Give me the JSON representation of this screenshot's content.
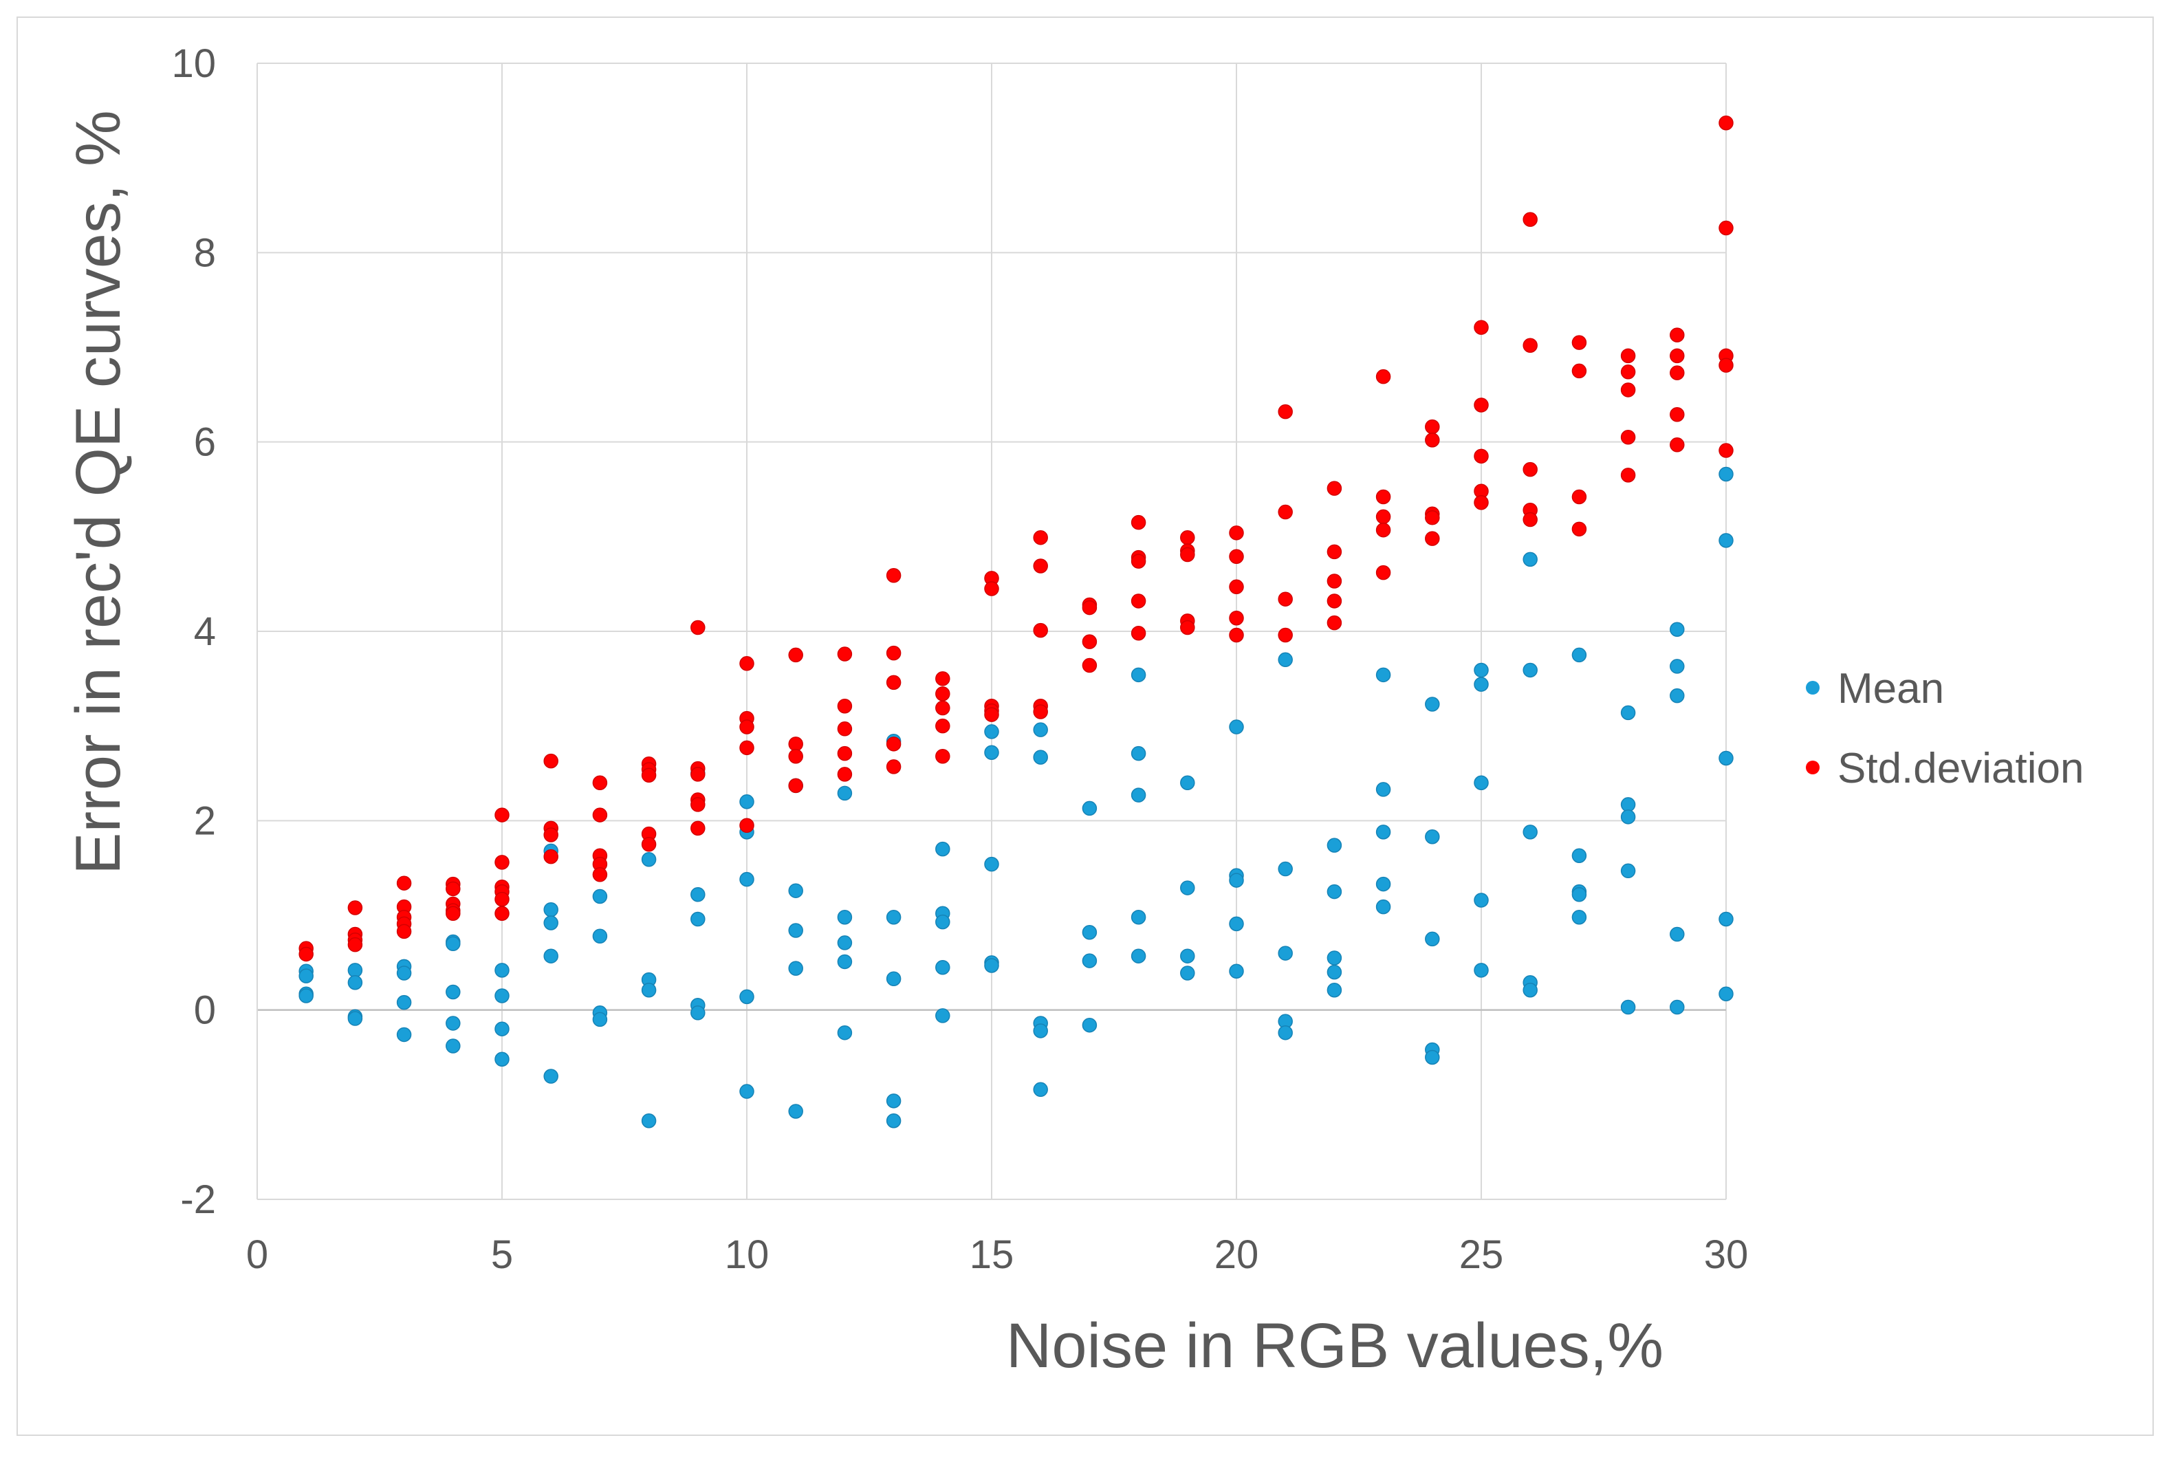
{
  "chart_data": {
    "type": "scatter",
    "title": "",
    "xlabel": "Noise in RGB values,%",
    "ylabel": "Error in rec'd QE curves, %",
    "xlim": [
      0,
      30
    ],
    "ylim": [
      -2,
      10
    ],
    "x_ticks": [
      0,
      5,
      10,
      15,
      20,
      25,
      30
    ],
    "y_ticks": [
      -2,
      0,
      2,
      4,
      6,
      8,
      10
    ],
    "grid": true,
    "legend_position": "right",
    "series": [
      {
        "name": "Mean",
        "color": "#1a9fd8",
        "points": [
          [
            1,
            0.41
          ],
          [
            1,
            0.36
          ],
          [
            1,
            0.17
          ],
          [
            1,
            0.15
          ],
          [
            2,
            0.42
          ],
          [
            2,
            0.29
          ],
          [
            2,
            -0.07
          ],
          [
            2,
            -0.09
          ],
          [
            3,
            0.46
          ],
          [
            3,
            0.39
          ],
          [
            3,
            0.08
          ],
          [
            3,
            -0.26
          ],
          [
            4,
            0.72
          ],
          [
            4,
            0.7
          ],
          [
            4,
            0.19
          ],
          [
            4,
            -0.14
          ],
          [
            4,
            -0.38
          ],
          [
            5,
            0.42
          ],
          [
            5,
            0.15
          ],
          [
            5,
            -0.2
          ],
          [
            5,
            -0.52
          ],
          [
            6,
            1.68
          ],
          [
            6,
            1.06
          ],
          [
            6,
            0.92
          ],
          [
            6,
            0.57
          ],
          [
            6,
            -0.7
          ],
          [
            7,
            1.2
          ],
          [
            7,
            0.78
          ],
          [
            7,
            -0.03
          ],
          [
            7,
            -0.1
          ],
          [
            8,
            1.59
          ],
          [
            8,
            0.32
          ],
          [
            8,
            0.21
          ],
          [
            8,
            -1.17
          ],
          [
            9,
            2.5
          ],
          [
            9,
            1.22
          ],
          [
            9,
            0.96
          ],
          [
            9,
            0.05
          ],
          [
            9,
            -0.03
          ],
          [
            10,
            2.2
          ],
          [
            10,
            1.88
          ],
          [
            10,
            1.38
          ],
          [
            10,
            0.14
          ],
          [
            10,
            -0.86
          ],
          [
            11,
            2.37
          ],
          [
            11,
            1.26
          ],
          [
            11,
            0.84
          ],
          [
            11,
            0.44
          ],
          [
            11,
            -1.07
          ],
          [
            12,
            2.29
          ],
          [
            12,
            0.98
          ],
          [
            12,
            0.71
          ],
          [
            12,
            0.51
          ],
          [
            12,
            -0.24
          ],
          [
            13,
            2.84
          ],
          [
            13,
            0.98
          ],
          [
            13,
            0.33
          ],
          [
            13,
            -0.96
          ],
          [
            13,
            -1.17
          ],
          [
            14,
            1.7
          ],
          [
            14,
            1.02
          ],
          [
            14,
            0.93
          ],
          [
            14,
            0.45
          ],
          [
            14,
            -0.06
          ],
          [
            15,
            2.94
          ],
          [
            15,
            2.72
          ],
          [
            15,
            1.54
          ],
          [
            15,
            0.5
          ],
          [
            15,
            0.47
          ],
          [
            16,
            2.96
          ],
          [
            16,
            2.67
          ],
          [
            16,
            -0.14
          ],
          [
            16,
            -0.22
          ],
          [
            16,
            -0.84
          ],
          [
            17,
            2.13
          ],
          [
            17,
            0.82
          ],
          [
            17,
            0.52
          ],
          [
            17,
            -0.16
          ],
          [
            18,
            3.54
          ],
          [
            18,
            2.71
          ],
          [
            18,
            2.27
          ],
          [
            18,
            0.98
          ],
          [
            18,
            0.57
          ],
          [
            19,
            2.4
          ],
          [
            19,
            1.29
          ],
          [
            19,
            0.57
          ],
          [
            19,
            0.39
          ],
          [
            20,
            2.99
          ],
          [
            20,
            1.42
          ],
          [
            20,
            1.37
          ],
          [
            20,
            0.91
          ],
          [
            20,
            0.41
          ],
          [
            21,
            3.7
          ],
          [
            21,
            1.49
          ],
          [
            21,
            0.6
          ],
          [
            21,
            -0.12
          ],
          [
            21,
            -0.24
          ],
          [
            22,
            1.74
          ],
          [
            22,
            1.25
          ],
          [
            22,
            0.55
          ],
          [
            22,
            0.4
          ],
          [
            22,
            0.21
          ],
          [
            23,
            3.54
          ],
          [
            23,
            2.33
          ],
          [
            23,
            1.88
          ],
          [
            23,
            1.33
          ],
          [
            23,
            1.09
          ],
          [
            24,
            3.23
          ],
          [
            24,
            1.83
          ],
          [
            24,
            0.75
          ],
          [
            24,
            -0.42
          ],
          [
            24,
            -0.5
          ],
          [
            25,
            3.59
          ],
          [
            25,
            3.44
          ],
          [
            25,
            2.4
          ],
          [
            25,
            1.16
          ],
          [
            25,
            0.42
          ],
          [
            26,
            4.76
          ],
          [
            26,
            3.59
          ],
          [
            26,
            1.88
          ],
          [
            26,
            0.29
          ],
          [
            26,
            0.21
          ],
          [
            27,
            3.75
          ],
          [
            27,
            1.63
          ],
          [
            27,
            1.25
          ],
          [
            27,
            1.22
          ],
          [
            27,
            0.98
          ],
          [
            28,
            3.14
          ],
          [
            28,
            2.17
          ],
          [
            28,
            2.04
          ],
          [
            28,
            1.47
          ],
          [
            28,
            0.03
          ],
          [
            29,
            4.02
          ],
          [
            29,
            3.63
          ],
          [
            29,
            3.32
          ],
          [
            29,
            0.8
          ],
          [
            29,
            0.03
          ],
          [
            30,
            5.66
          ],
          [
            30,
            4.96
          ],
          [
            30,
            2.66
          ],
          [
            30,
            0.96
          ],
          [
            30,
            0.17
          ]
        ]
      },
      {
        "name": "Std.deviation",
        "color": "#ff0000",
        "points": [
          [
            1,
            0.65
          ],
          [
            1,
            0.59
          ],
          [
            2,
            1.08
          ],
          [
            2,
            0.8
          ],
          [
            2,
            0.74
          ],
          [
            2,
            0.69
          ],
          [
            3,
            1.34
          ],
          [
            3,
            1.09
          ],
          [
            3,
            0.98
          ],
          [
            3,
            0.91
          ],
          [
            3,
            0.83
          ],
          [
            4,
            1.33
          ],
          [
            4,
            1.28
          ],
          [
            4,
            1.12
          ],
          [
            4,
            1.05
          ],
          [
            4,
            1.02
          ],
          [
            5,
            2.06
          ],
          [
            5,
            1.56
          ],
          [
            5,
            1.3
          ],
          [
            5,
            1.25
          ],
          [
            5,
            1.17
          ],
          [
            5,
            1.02
          ],
          [
            6,
            2.63
          ],
          [
            6,
            1.92
          ],
          [
            6,
            1.85
          ],
          [
            6,
            1.62
          ],
          [
            7,
            2.4
          ],
          [
            7,
            2.06
          ],
          [
            7,
            1.63
          ],
          [
            7,
            1.54
          ],
          [
            7,
            1.43
          ],
          [
            8,
            2.6
          ],
          [
            8,
            2.54
          ],
          [
            8,
            2.48
          ],
          [
            8,
            1.86
          ],
          [
            8,
            1.75
          ],
          [
            9,
            4.04
          ],
          [
            9,
            2.55
          ],
          [
            9,
            2.49
          ],
          [
            9,
            2.22
          ],
          [
            9,
            2.17
          ],
          [
            9,
            1.92
          ],
          [
            10,
            3.66
          ],
          [
            10,
            3.08
          ],
          [
            10,
            2.99
          ],
          [
            10,
            2.77
          ],
          [
            10,
            1.95
          ],
          [
            11,
            3.75
          ],
          [
            11,
            2.81
          ],
          [
            11,
            2.68
          ],
          [
            11,
            2.37
          ],
          [
            12,
            3.76
          ],
          [
            12,
            3.21
          ],
          [
            12,
            2.97
          ],
          [
            12,
            2.71
          ],
          [
            12,
            2.49
          ],
          [
            13,
            4.59
          ],
          [
            13,
            3.77
          ],
          [
            13,
            3.46
          ],
          [
            13,
            2.81
          ],
          [
            13,
            2.57
          ],
          [
            14,
            3.5
          ],
          [
            14,
            3.34
          ],
          [
            14,
            3.19
          ],
          [
            14,
            3.0
          ],
          [
            14,
            2.68
          ],
          [
            15,
            4.56
          ],
          [
            15,
            4.45
          ],
          [
            15,
            3.21
          ],
          [
            15,
            3.16
          ],
          [
            15,
            3.12
          ],
          [
            16,
            4.99
          ],
          [
            16,
            4.69
          ],
          [
            16,
            4.01
          ],
          [
            16,
            3.21
          ],
          [
            16,
            3.15
          ],
          [
            17,
            4.28
          ],
          [
            17,
            4.25
          ],
          [
            17,
            3.89
          ],
          [
            17,
            3.64
          ],
          [
            18,
            5.15
          ],
          [
            18,
            4.78
          ],
          [
            18,
            4.74
          ],
          [
            18,
            4.32
          ],
          [
            18,
            3.98
          ],
          [
            19,
            4.99
          ],
          [
            19,
            4.85
          ],
          [
            19,
            4.81
          ],
          [
            19,
            4.11
          ],
          [
            19,
            4.04
          ],
          [
            20,
            5.04
          ],
          [
            20,
            4.79
          ],
          [
            20,
            4.47
          ],
          [
            20,
            4.14
          ],
          [
            20,
            3.96
          ],
          [
            21,
            6.32
          ],
          [
            21,
            5.26
          ],
          [
            21,
            4.34
          ],
          [
            21,
            3.96
          ],
          [
            22,
            5.51
          ],
          [
            22,
            4.84
          ],
          [
            22,
            4.53
          ],
          [
            22,
            4.32
          ],
          [
            22,
            4.09
          ],
          [
            23,
            6.69
          ],
          [
            23,
            5.42
          ],
          [
            23,
            5.21
          ],
          [
            23,
            5.07
          ],
          [
            23,
            4.62
          ],
          [
            24,
            6.16
          ],
          [
            24,
            6.02
          ],
          [
            24,
            5.24
          ],
          [
            24,
            5.2
          ],
          [
            24,
            4.98
          ],
          [
            25,
            7.21
          ],
          [
            25,
            6.39
          ],
          [
            25,
            5.85
          ],
          [
            25,
            5.48
          ],
          [
            25,
            5.36
          ],
          [
            26,
            8.35
          ],
          [
            26,
            7.02
          ],
          [
            26,
            5.71
          ],
          [
            26,
            5.28
          ],
          [
            26,
            5.18
          ],
          [
            27,
            7.05
          ],
          [
            27,
            6.75
          ],
          [
            27,
            5.42
          ],
          [
            27,
            5.08
          ],
          [
            28,
            6.91
          ],
          [
            28,
            6.74
          ],
          [
            28,
            6.55
          ],
          [
            28,
            6.05
          ],
          [
            28,
            5.65
          ],
          [
            29,
            7.13
          ],
          [
            29,
            6.91
          ],
          [
            29,
            6.73
          ],
          [
            29,
            6.29
          ],
          [
            29,
            5.97
          ],
          [
            30,
            9.37
          ],
          [
            30,
            8.26
          ],
          [
            30,
            6.91
          ],
          [
            30,
            6.81
          ],
          [
            30,
            5.91
          ]
        ]
      }
    ]
  }
}
